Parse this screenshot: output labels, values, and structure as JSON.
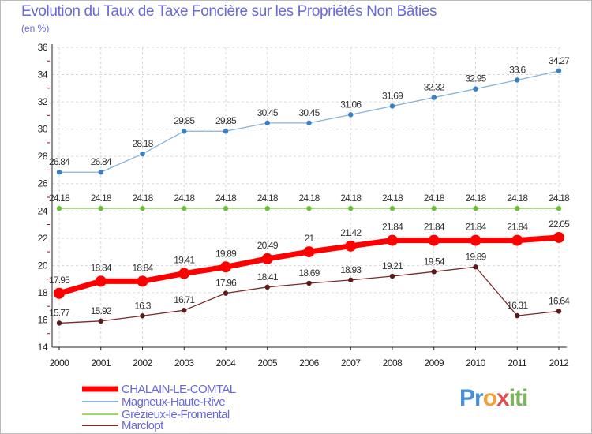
{
  "title": "Evolution du Taux de Taxe Foncière sur les Propriétés Non Bâties",
  "unit": "(en %)",
  "logo": {
    "text": "Proxiti",
    "parts": [
      "Pr",
      "o",
      "x",
      "iti"
    ]
  },
  "chart_data": {
    "type": "line",
    "title": "Evolution du Taux de Taxe Foncière sur les Propriétés Non Bâties",
    "ylabel": "(en %)",
    "xlabel": "",
    "ylim": [
      14,
      36
    ],
    "yticks": [
      14,
      16,
      18,
      20,
      22,
      24,
      26,
      28,
      30,
      32,
      34,
      36
    ],
    "grid": true,
    "legend_position": "bottom-left",
    "categories": [
      "2000",
      "2001",
      "2002",
      "2003",
      "2004",
      "2005",
      "2006",
      "2007",
      "2008",
      "2009",
      "2010",
      "2011",
      "2012"
    ],
    "series": [
      {
        "name": "CHALAIN-LE-COMTAL",
        "color": "#ff0000",
        "marker": "#ff0000",
        "width": 7,
        "values": [
          17.95,
          18.84,
          18.84,
          19.41,
          19.89,
          20.49,
          21,
          21.42,
          21.84,
          21.84,
          21.84,
          21.84,
          22.05
        ],
        "labels": [
          "17.95",
          "18.84",
          "18.84",
          "19.41",
          "19.89",
          "20.49",
          "21",
          "21.42",
          "21.84",
          "21.84",
          "21.84",
          "21.84",
          "22.05"
        ]
      },
      {
        "name": "Magneux-Haute-Rive",
        "color": "#86b4dc",
        "marker": "#3b7fc4",
        "width": 1.3,
        "values": [
          26.84,
          26.84,
          28.18,
          29.85,
          29.85,
          30.45,
          30.45,
          31.06,
          31.69,
          32.32,
          32.95,
          33.6,
          34.27
        ],
        "labels": [
          "26.84",
          "26.84",
          "28.18",
          "29.85",
          "29.85",
          "30.45",
          "30.45",
          "31.06",
          "31.69",
          "32.32",
          "32.95",
          "33.6",
          "34.27"
        ]
      },
      {
        "name": "Grézieux-le-Fromental",
        "color": "#9ad86a",
        "marker": "#6cbf3c",
        "width": 1.3,
        "values": [
          24.18,
          24.18,
          24.18,
          24.18,
          24.18,
          24.18,
          24.18,
          24.18,
          24.18,
          24.18,
          24.18,
          24.18,
          24.18
        ],
        "labels": [
          "24.18",
          "24.18",
          "24.18",
          "24.18",
          "24.18",
          "24.18",
          "24.18",
          "24.18",
          "24.18",
          "24.18",
          "24.18",
          "24.18",
          "24.18"
        ]
      },
      {
        "name": "Marclopt",
        "color": "#7a2a2a",
        "marker": "#5a1a1a",
        "width": 1.3,
        "values": [
          15.77,
          15.92,
          16.3,
          16.71,
          17.96,
          18.41,
          18.69,
          18.93,
          19.21,
          19.54,
          19.89,
          16.31,
          16.64
        ],
        "labels": [
          "15.77",
          "15.92",
          "16.3",
          "16.71",
          "17.96",
          "18.41",
          "18.69",
          "18.93",
          "19.21",
          "19.54",
          "19.89",
          "16.31",
          "16.64"
        ]
      }
    ]
  }
}
